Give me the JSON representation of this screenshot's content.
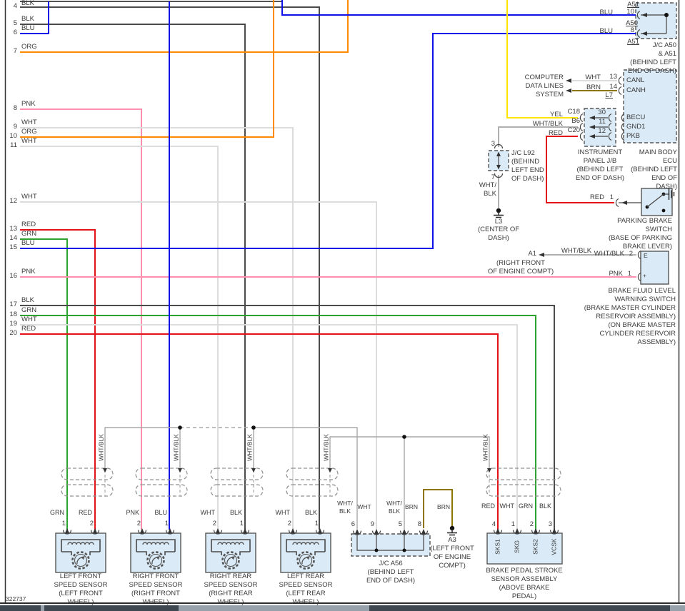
{
  "diagram_id": "322737",
  "colors": {
    "BLK": "#4b4b4b",
    "WHT": "#dcdcdc",
    "WHT_BLK": "#b0b0b0",
    "BLU": "#1010e8",
    "ORG": "#ff8a00",
    "PNK": "#ff8fae",
    "RED": "#e31219",
    "GRN": "#2ea22e",
    "YEL": "#ffe400",
    "BRN": "#8f7400",
    "box_fill": "#daeaf6",
    "box_border": "#555555"
  },
  "left_wires": [
    {
      "num": "4",
      "color": "BLK"
    },
    {
      "num": "5",
      "color": "BLK"
    },
    {
      "num": "6",
      "color": "BLU"
    },
    {
      "num": "7",
      "color": "ORG"
    },
    {
      "num": "8",
      "color": "PNK"
    },
    {
      "num": "9",
      "color": "WHT"
    },
    {
      "num": "10",
      "color": "ORG"
    },
    {
      "num": "11",
      "color": "WHT"
    },
    {
      "num": "12",
      "color": "WHT"
    },
    {
      "num": "13",
      "color": "RED"
    },
    {
      "num": "14",
      "color": "GRN"
    },
    {
      "num": "15",
      "color": "BLU"
    },
    {
      "num": "16",
      "color": "PNK"
    },
    {
      "num": "17",
      "color": "BLK"
    },
    {
      "num": "18",
      "color": "GRN"
    },
    {
      "num": "19",
      "color": "WHT"
    },
    {
      "num": "20",
      "color": "RED"
    }
  ],
  "jc_a50_a51": {
    "pin_top_id": "A51",
    "pin1_color": "BLU",
    "pin1_num": "10",
    "mid_id": "A50",
    "pin2_color": "BLU",
    "pin2_num": "8",
    "pin_bottom_id": "A51",
    "caption": [
      "J/C A50",
      "& A51",
      "(BEHIND LEFT",
      "END OF DASH)"
    ]
  },
  "computer_data_lines": {
    "system": [
      "COMPUTER",
      "DATA LINES",
      "SYSTEM"
    ],
    "rows": [
      {
        "color": "WHT",
        "num": "13",
        "pin": "CANL"
      },
      {
        "color": "BRN",
        "num": "14",
        "pin": "CANH"
      }
    ],
    "connector_id": "L7"
  },
  "instrument_panel_jb": {
    "rows": [
      {
        "wire_color": "YEL",
        "conn": "C18",
        "num": "30",
        "ecu_pin": "BECU"
      },
      {
        "wire_color": "WHT/BLK",
        "conn": "B6",
        "num": "11",
        "ecu_pin": "GND1"
      },
      {
        "wire_color": "RED",
        "conn": "C20",
        "num": "12",
        "ecu_pin": "PKB"
      }
    ],
    "caption": [
      "INSTRUMENT",
      "PANEL J/B",
      "(BEHIND LEFT",
      "END OF DASH)"
    ]
  },
  "main_body_ecu": {
    "caption": [
      "MAIN BODY",
      "ECU",
      "(BEHIND LEFT",
      "END OF",
      "DASH)"
    ]
  },
  "jc_l92": {
    "pin_top": "3",
    "pin_bottom": "7",
    "wire_label": [
      "WHT/",
      "BLK"
    ],
    "caption": [
      "J/C L92",
      "(BEHIND",
      "LEFT END",
      "OF DASH)"
    ]
  },
  "l3": {
    "caption": [
      "L3",
      "(CENTER OF",
      "DASH)"
    ]
  },
  "parking_brake_switch": {
    "wire_color": "RED",
    "pin": "1",
    "caption": [
      "PARKING BRAKE",
      "SWITCH",
      "(BASE OF PARKING",
      "BRAKE LEVER)"
    ]
  },
  "a1": {
    "label": "A1",
    "wire_label": "WHT/BLK",
    "pin_label": "WHT/BLK",
    "pin": "2",
    "caption": [
      "(RIGHT FRONT",
      "OF ENGINE COMPT)"
    ]
  },
  "brake_fluid_switch": {
    "pin1_color": "PNK",
    "pin1": "1",
    "sym_top": "E",
    "sym_bottom": "+",
    "caption": [
      "BRAKE FLUID LEVEL",
      "WARNING SWITCH",
      "(BRAKE MASTER CYLINDER",
      "RESERVOIR ASSEMBLY)",
      "(ON BRAKE MASTER",
      "CYLINDER RESERVOIR",
      "ASSEMBLY)"
    ]
  },
  "shield_drain": "WHT/BLK",
  "sensors": [
    {
      "pins": [
        {
          "num": "1",
          "color": "GRN"
        },
        {
          "num": "2",
          "color": "RED"
        }
      ],
      "caption": [
        "LEFT FRONT",
        "SPEED SENSOR",
        "(LEFT FRONT",
        "WHEEL)"
      ]
    },
    {
      "pins": [
        {
          "num": "2",
          "color": "PNK"
        },
        {
          "num": "1",
          "color": "BLU"
        }
      ],
      "caption": [
        "RIGHT FRONT",
        "SPEED SENSOR",
        "(RIGHT FRONT",
        "WHEEL)"
      ]
    },
    {
      "pins": [
        {
          "num": "2",
          "color": "WHT"
        },
        {
          "num": "1",
          "color": "BLK"
        }
      ],
      "caption": [
        "RIGHT REAR",
        "SPEED SENSOR",
        "(RIGHT REAR",
        "WHEEL)"
      ]
    },
    {
      "pins": [
        {
          "num": "2",
          "color": "WHT"
        },
        {
          "num": "1",
          "color": "BLK"
        }
      ],
      "caption": [
        "LEFT REAR",
        "SPEED SENSOR",
        "(LEFT REAR",
        "WHEEL)"
      ]
    }
  ],
  "jc_a56": {
    "pins": [
      {
        "num": "6",
        "label": [
          "WHT/",
          "BLK"
        ]
      },
      {
        "num": "9",
        "label": [
          "WHT"
        ]
      },
      {
        "num": "5",
        "label": [
          "WHT/",
          "BLK"
        ]
      },
      {
        "num": "8",
        "label": [
          "BRN"
        ]
      }
    ],
    "caption": [
      "J/C A56",
      "(BEHIND LEFT",
      "END OF DASH)"
    ]
  },
  "a3": {
    "wire_color": "BRN",
    "caption": [
      "A3",
      "(LEFT FRONT",
      "OF ENGINE",
      "COMPT)"
    ]
  },
  "brake_pedal_sensor": {
    "pins": [
      {
        "num": "4",
        "color": "RED",
        "signal": "SKS1"
      },
      {
        "num": "1",
        "color": "WHT",
        "signal": "SKG"
      },
      {
        "num": "2",
        "color": "GRN",
        "signal": "SKS2"
      },
      {
        "num": "3",
        "color": "BLK",
        "signal": "VCSK"
      }
    ],
    "caption": [
      "BRAKE PEDAL STROKE",
      "SENSOR ASSEMBLY",
      "(ABOVE BRAKE",
      "PEDAL)"
    ]
  }
}
